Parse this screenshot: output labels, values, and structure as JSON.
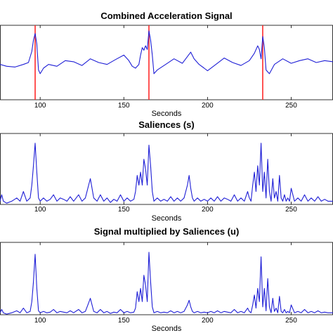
{
  "chart_data": [
    {
      "type": "line",
      "title": "Combined Acceleration Signal",
      "xlabel": "Seconds",
      "ylabel": "",
      "xlim": [
        76,
        275
      ],
      "ylim": [
        -1,
        1
      ],
      "xticks": [
        100,
        150,
        200,
        250
      ],
      "grid": false,
      "markers": [
        97,
        165,
        233
      ],
      "series": [
        {
          "color": "#1f1fd6",
          "x": [
            76,
            80,
            85,
            90,
            93,
            95,
            96,
            97,
            98,
            99,
            100,
            102,
            105,
            110,
            115,
            120,
            125,
            130,
            135,
            140,
            145,
            150,
            153,
            155,
            157,
            159,
            160,
            161,
            162,
            163,
            164,
            165,
            166,
            167,
            168,
            170,
            175,
            180,
            185,
            190,
            192,
            195,
            198,
            200,
            205,
            210,
            215,
            220,
            225,
            228,
            230,
            231,
            232,
            233,
            234,
            235,
            237,
            240,
            245,
            250,
            255,
            260,
            265,
            270,
            275
          ],
          "y": [
            -0.05,
            -0.1,
            -0.12,
            -0.05,
            0.0,
            0.3,
            0.6,
            0.78,
            0.5,
            -0.2,
            -0.3,
            -0.15,
            -0.05,
            -0.1,
            0.05,
            0.02,
            -0.08,
            0.1,
            0.0,
            -0.05,
            0.08,
            0.2,
            0.05,
            -0.1,
            -0.15,
            -0.05,
            0.2,
            0.4,
            0.33,
            0.45,
            0.35,
            0.85,
            0.6,
            0.2,
            -0.3,
            -0.2,
            -0.05,
            0.1,
            -0.02,
            0.28,
            0.1,
            -0.05,
            -0.15,
            -0.22,
            -0.05,
            0.12,
            0.0,
            -0.08,
            0.05,
            0.25,
            0.45,
            0.35,
            0.1,
            0.7,
            0.4,
            -0.2,
            -0.3,
            -0.05,
            0.1,
            -0.02,
            0.05,
            0.1,
            0.0,
            0.05,
            0.02
          ]
        }
      ]
    },
    {
      "type": "line",
      "title": "Saliences (s)",
      "xlabel": "Seconds",
      "ylabel": "",
      "xlim": [
        76,
        275
      ],
      "ylim": [
        0,
        1.1
      ],
      "xticks": [
        100,
        150,
        200,
        250
      ],
      "grid": false,
      "series": [
        {
          "color": "#1f1fd6",
          "x": [
            76,
            77,
            78,
            80,
            83,
            86,
            88,
            90,
            92,
            94,
            95,
            96,
            97,
            98,
            99,
            100,
            102,
            104,
            106,
            108,
            110,
            112,
            114,
            116,
            118,
            120,
            123,
            125,
            127,
            129,
            130,
            131,
            132,
            134,
            136,
            138,
            140,
            142,
            144,
            146,
            148,
            150,
            152,
            154,
            156,
            157,
            158,
            159,
            160,
            161,
            162,
            163,
            164,
            165,
            166,
            167,
            168,
            170,
            172,
            174,
            176,
            178,
            180,
            182,
            184,
            186,
            188,
            189,
            190,
            191,
            192,
            194,
            196,
            198,
            200,
            202,
            204,
            206,
            208,
            210,
            212,
            214,
            216,
            218,
            220,
            222,
            224,
            225,
            226,
            227,
            228,
            229,
            230,
            231,
            232,
            233,
            234,
            235,
            236,
            237,
            238,
            239,
            240,
            241,
            242,
            243,
            244,
            245,
            246,
            247,
            248,
            249,
            250,
            252,
            254,
            256,
            258,
            260,
            262,
            264,
            266,
            268,
            270,
            272,
            275
          ],
          "y": [
            0.05,
            0.15,
            0.05,
            0.02,
            0.05,
            0.1,
            0.05,
            0.2,
            0.05,
            0.1,
            0.3,
            0.6,
            0.95,
            0.5,
            0.1,
            0.05,
            0.1,
            0.05,
            0.08,
            0.15,
            0.05,
            0.1,
            0.08,
            0.05,
            0.12,
            0.05,
            0.15,
            0.05,
            0.1,
            0.3,
            0.4,
            0.25,
            0.1,
            0.05,
            0.15,
            0.05,
            0.1,
            0.03,
            0.08,
            0.05,
            0.15,
            0.05,
            0.1,
            0.05,
            0.08,
            0.2,
            0.45,
            0.3,
            0.5,
            0.3,
            0.7,
            0.55,
            0.3,
            0.92,
            0.6,
            0.2,
            0.05,
            0.1,
            0.05,
            0.08,
            0.05,
            0.12,
            0.05,
            0.1,
            0.05,
            0.1,
            0.3,
            0.45,
            0.25,
            0.1,
            0.05,
            0.1,
            0.05,
            0.08,
            0.05,
            0.1,
            0.05,
            0.12,
            0.05,
            0.1,
            0.08,
            0.05,
            0.15,
            0.05,
            0.1,
            0.05,
            0.2,
            0.1,
            0.05,
            0.3,
            0.5,
            0.2,
            0.6,
            0.3,
            0.95,
            0.2,
            0.5,
            0.1,
            0.7,
            0.2,
            0.05,
            0.4,
            0.1,
            0.2,
            0.05,
            0.45,
            0.1,
            0.05,
            0.15,
            0.05,
            0.1,
            0.05,
            0.25,
            0.05,
            0.1,
            0.05,
            0.15,
            0.05,
            0.1,
            0.05,
            0.12,
            0.05,
            0.08,
            0.05,
            0.05
          ]
        }
      ]
    },
    {
      "type": "line",
      "title": "Signal multiplied by Saliences (u)",
      "xlabel": "Seconds",
      "ylabel": "",
      "xlim": [
        76,
        275
      ],
      "ylim": [
        0,
        1.1
      ],
      "xticks": [
        100,
        150,
        200,
        250
      ],
      "grid": false,
      "series": [
        {
          "color": "#1f1fd6",
          "x": [
            76,
            77,
            78,
            80,
            83,
            86,
            88,
            90,
            92,
            94,
            95,
            96,
            97,
            98,
            99,
            100,
            102,
            104,
            106,
            108,
            110,
            112,
            114,
            116,
            118,
            120,
            123,
            125,
            127,
            129,
            130,
            131,
            132,
            134,
            136,
            138,
            140,
            142,
            144,
            146,
            148,
            150,
            152,
            154,
            156,
            157,
            158,
            159,
            160,
            161,
            162,
            163,
            164,
            165,
            166,
            167,
            168,
            170,
            172,
            174,
            176,
            178,
            180,
            182,
            184,
            186,
            188,
            189,
            190,
            191,
            192,
            194,
            196,
            198,
            200,
            202,
            204,
            206,
            208,
            210,
            212,
            214,
            216,
            218,
            220,
            222,
            224,
            225,
            226,
            227,
            228,
            229,
            230,
            231,
            232,
            233,
            234,
            235,
            236,
            237,
            238,
            239,
            240,
            241,
            242,
            243,
            244,
            245,
            246,
            247,
            248,
            249,
            250,
            252,
            254,
            256,
            258,
            260,
            262,
            264,
            266,
            268,
            270,
            272,
            275
          ],
          "y": [
            0.03,
            0.08,
            0.03,
            0.01,
            0.03,
            0.06,
            0.03,
            0.1,
            0.03,
            0.05,
            0.2,
            0.5,
            0.92,
            0.4,
            0.06,
            0.03,
            0.05,
            0.03,
            0.04,
            0.08,
            0.03,
            0.05,
            0.04,
            0.03,
            0.06,
            0.03,
            0.08,
            0.03,
            0.05,
            0.18,
            0.25,
            0.15,
            0.05,
            0.03,
            0.08,
            0.03,
            0.05,
            0.02,
            0.04,
            0.03,
            0.08,
            0.03,
            0.05,
            0.03,
            0.04,
            0.1,
            0.35,
            0.2,
            0.4,
            0.2,
            0.6,
            0.45,
            0.2,
            0.95,
            0.5,
            0.12,
            0.03,
            0.05,
            0.03,
            0.04,
            0.03,
            0.06,
            0.03,
            0.05,
            0.03,
            0.05,
            0.15,
            0.22,
            0.12,
            0.05,
            0.03,
            0.05,
            0.03,
            0.04,
            0.03,
            0.05,
            0.03,
            0.06,
            0.03,
            0.05,
            0.04,
            0.03,
            0.08,
            0.03,
            0.05,
            0.03,
            0.1,
            0.05,
            0.03,
            0.15,
            0.3,
            0.1,
            0.4,
            0.2,
            0.88,
            0.12,
            0.4,
            0.06,
            0.55,
            0.12,
            0.03,
            0.25,
            0.05,
            0.1,
            0.03,
            0.28,
            0.05,
            0.03,
            0.08,
            0.03,
            0.05,
            0.03,
            0.15,
            0.03,
            0.05,
            0.03,
            0.08,
            0.03,
            0.05,
            0.03,
            0.06,
            0.03,
            0.04,
            0.03,
            0.03
          ]
        }
      ]
    }
  ]
}
